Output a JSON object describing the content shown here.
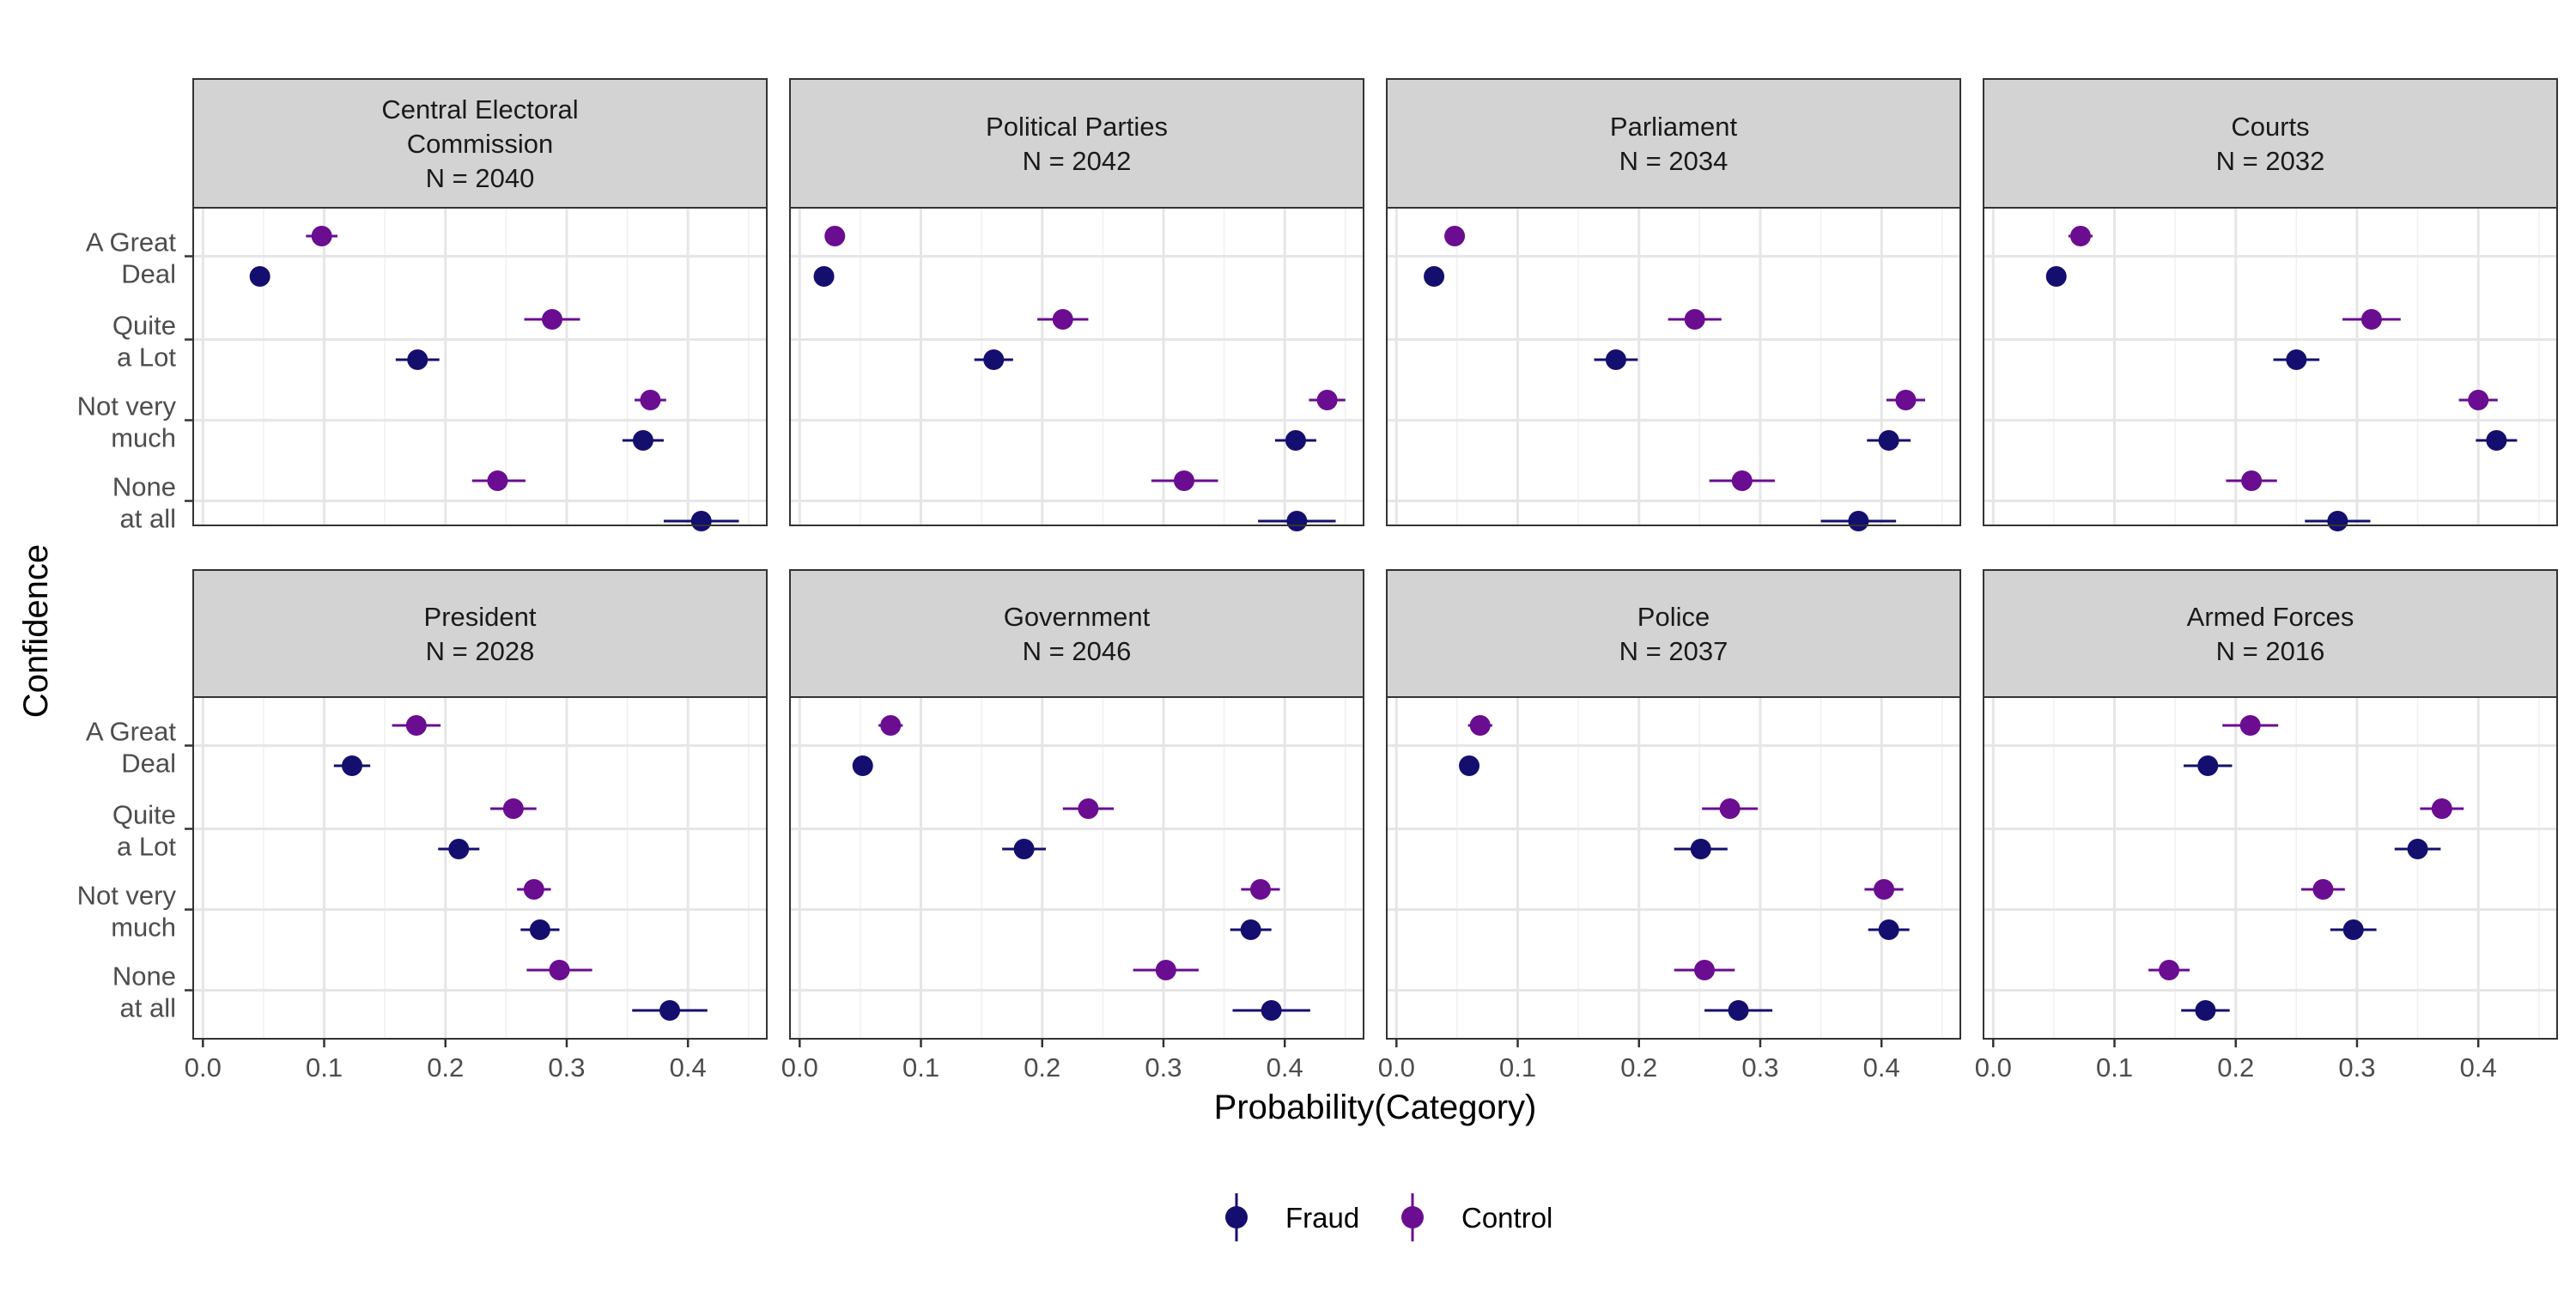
{
  "chart_data": {
    "type": "dot-errorbar",
    "xlabel": "Probability(Category)",
    "ylabel": "Confidence",
    "xlim": [
      -0.008,
      0.465
    ],
    "x_ticks": [
      0.0,
      0.1,
      0.2,
      0.3,
      0.4
    ],
    "x_tick_labels": [
      "0.0",
      "0.1",
      "0.2",
      "0.3",
      "0.4"
    ],
    "categories": [
      "A Great Deal",
      "Quite a Lot",
      "Not very much",
      "None at all"
    ],
    "category_labels": [
      [
        "A Great",
        "Deal"
      ],
      [
        "Quite",
        "a Lot"
      ],
      [
        "Not very",
        "much"
      ],
      [
        "None",
        "at all"
      ]
    ],
    "grid": true,
    "legend": {
      "position": "bottom",
      "entries": [
        {
          "name": "Fraud",
          "color": "#140F6E"
        },
        {
          "name": "Control",
          "color": "#6A0D91"
        }
      ]
    },
    "panels": [
      {
        "title_lines": [
          "Central Electoral",
          "Commission",
          "N = 2040"
        ],
        "series": [
          {
            "name": "Control",
            "values": [
              0.098,
              0.288,
              0.369,
              0.243
            ],
            "lower": [
              0.085,
              0.265,
              0.356,
              0.222
            ],
            "upper": [
              0.111,
              0.311,
              0.382,
              0.266
            ]
          },
          {
            "name": "Fraud",
            "values": [
              0.047,
              0.177,
              0.363,
              0.411
            ],
            "lower": [
              0.041,
              0.159,
              0.346,
              0.38
            ],
            "upper": [
              0.054,
              0.195,
              0.38,
              0.442
            ]
          }
        ]
      },
      {
        "title_lines": [
          "Political Parties",
          "N = 2042"
        ],
        "series": [
          {
            "name": "Control",
            "values": [
              0.029,
              0.217,
              0.435,
              0.317
            ],
            "lower": [
              0.024,
              0.196,
              0.42,
              0.29
            ],
            "upper": [
              0.034,
              0.238,
              0.45,
              0.345
            ]
          },
          {
            "name": "Fraud",
            "values": [
              0.02,
              0.16,
              0.409,
              0.41
            ],
            "lower": [
              0.016,
              0.144,
              0.392,
              0.378
            ],
            "upper": [
              0.024,
              0.176,
              0.426,
              0.442
            ]
          }
        ]
      },
      {
        "title_lines": [
          "Parliament",
          "N = 2034"
        ],
        "series": [
          {
            "name": "Control",
            "values": [
              0.048,
              0.246,
              0.42,
              0.285
            ],
            "lower": [
              0.041,
              0.224,
              0.404,
              0.258
            ],
            "upper": [
              0.055,
              0.268,
              0.436,
              0.312
            ]
          },
          {
            "name": "Fraud",
            "values": [
              0.031,
              0.181,
              0.406,
              0.381
            ],
            "lower": [
              0.026,
              0.163,
              0.388,
              0.35
            ],
            "upper": [
              0.036,
              0.199,
              0.424,
              0.412
            ]
          }
        ]
      },
      {
        "title_lines": [
          "Courts",
          "N = 2032"
        ],
        "series": [
          {
            "name": "Control",
            "values": [
              0.072,
              0.312,
              0.4,
              0.213
            ],
            "lower": [
              0.062,
              0.288,
              0.384,
              0.192
            ],
            "upper": [
              0.082,
              0.336,
              0.416,
              0.234
            ]
          },
          {
            "name": "Fraud",
            "values": [
              0.052,
              0.25,
              0.415,
              0.284
            ],
            "lower": [
              0.045,
              0.231,
              0.398,
              0.257
            ],
            "upper": [
              0.059,
              0.269,
              0.432,
              0.311
            ]
          }
        ]
      },
      {
        "title_lines": [
          "President",
          "N = 2028"
        ],
        "series": [
          {
            "name": "Control",
            "values": [
              0.176,
              0.256,
              0.273,
              0.294
            ],
            "lower": [
              0.156,
              0.237,
              0.259,
              0.267
            ],
            "upper": [
              0.196,
              0.275,
              0.287,
              0.321
            ]
          },
          {
            "name": "Fraud",
            "values": [
              0.123,
              0.211,
              0.278,
              0.385
            ],
            "lower": [
              0.108,
              0.194,
              0.262,
              0.354
            ],
            "upper": [
              0.138,
              0.228,
              0.294,
              0.416
            ]
          }
        ]
      },
      {
        "title_lines": [
          "Government",
          "N = 2046"
        ],
        "series": [
          {
            "name": "Control",
            "values": [
              0.075,
              0.238,
              0.38,
              0.302
            ],
            "lower": [
              0.065,
              0.217,
              0.364,
              0.275
            ],
            "upper": [
              0.085,
              0.259,
              0.396,
              0.329
            ]
          },
          {
            "name": "Fraud",
            "values": [
              0.052,
              0.185,
              0.372,
              0.389
            ],
            "lower": [
              0.045,
              0.167,
              0.355,
              0.357
            ],
            "upper": [
              0.059,
              0.203,
              0.389,
              0.421
            ]
          }
        ]
      },
      {
        "title_lines": [
          "Police",
          "N = 2037"
        ],
        "series": [
          {
            "name": "Control",
            "values": [
              0.069,
              0.275,
              0.402,
              0.254
            ],
            "lower": [
              0.059,
              0.252,
              0.386,
              0.229
            ],
            "upper": [
              0.079,
              0.298,
              0.418,
              0.279
            ]
          },
          {
            "name": "Fraud",
            "values": [
              0.06,
              0.251,
              0.406,
              0.282
            ],
            "lower": [
              0.052,
              0.229,
              0.389,
              0.254
            ],
            "upper": [
              0.068,
              0.273,
              0.423,
              0.31
            ]
          }
        ]
      },
      {
        "title_lines": [
          "Armed Forces",
          "N = 2016"
        ],
        "series": [
          {
            "name": "Control",
            "values": [
              0.212,
              0.37,
              0.272,
              0.145
            ],
            "lower": [
              0.189,
              0.352,
              0.254,
              0.128
            ],
            "upper": [
              0.235,
              0.388,
              0.29,
              0.162
            ]
          },
          {
            "name": "Fraud",
            "values": [
              0.177,
              0.35,
              0.297,
              0.175
            ],
            "lower": [
              0.157,
              0.331,
              0.278,
              0.155
            ],
            "upper": [
              0.197,
              0.369,
              0.316,
              0.195
            ]
          }
        ]
      }
    ]
  }
}
